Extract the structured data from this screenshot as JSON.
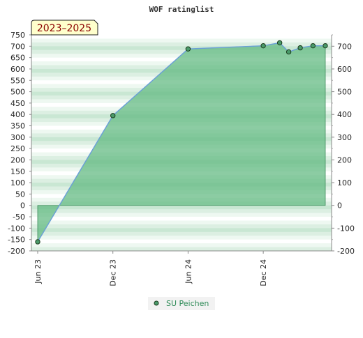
{
  "chart_data": {
    "type": "area",
    "title": "WOF ratinglist",
    "period_badge": "2023–2025",
    "xlabel": "",
    "ylabel": "",
    "x_ticks": [
      "Jun 23",
      "Dec 23",
      "Jun 24",
      "Dec 24"
    ],
    "x_tick_dates": [
      "2023-06-01",
      "2023-12-01",
      "2024-06-01",
      "2024-12-01"
    ],
    "x_range": [
      "2023-06-01",
      "2025-05-01"
    ],
    "ylim": [
      -200,
      750
    ],
    "y_ticks_left": [
      -200,
      -150,
      -100,
      -50,
      0,
      50,
      100,
      150,
      200,
      250,
      300,
      350,
      400,
      450,
      500,
      550,
      600,
      650,
      700,
      750
    ],
    "y_ticks_right": [
      -200,
      -100,
      0,
      100,
      200,
      300,
      400,
      500,
      600,
      700
    ],
    "series": [
      {
        "name": "SU Peichen",
        "color": "#4a9a6a",
        "line_color": "#6a9fd8",
        "fill_color": "#5fb87f",
        "points": [
          {
            "x": "2023-06-01",
            "y": -160
          },
          {
            "x": "2023-12-01",
            "y": 395
          },
          {
            "x": "2024-06-01",
            "y": 688
          },
          {
            "x": "2024-12-01",
            "y": 702
          },
          {
            "x": "2025-01-10",
            "y": 715
          },
          {
            "x": "2025-02-01",
            "y": 675
          },
          {
            "x": "2025-03-01",
            "y": 693
          },
          {
            "x": "2025-04-01",
            "y": 702
          },
          {
            "x": "2025-05-01",
            "y": 702
          }
        ]
      }
    ],
    "grid": "horizontal bands",
    "legend_position": "bottom-center"
  }
}
